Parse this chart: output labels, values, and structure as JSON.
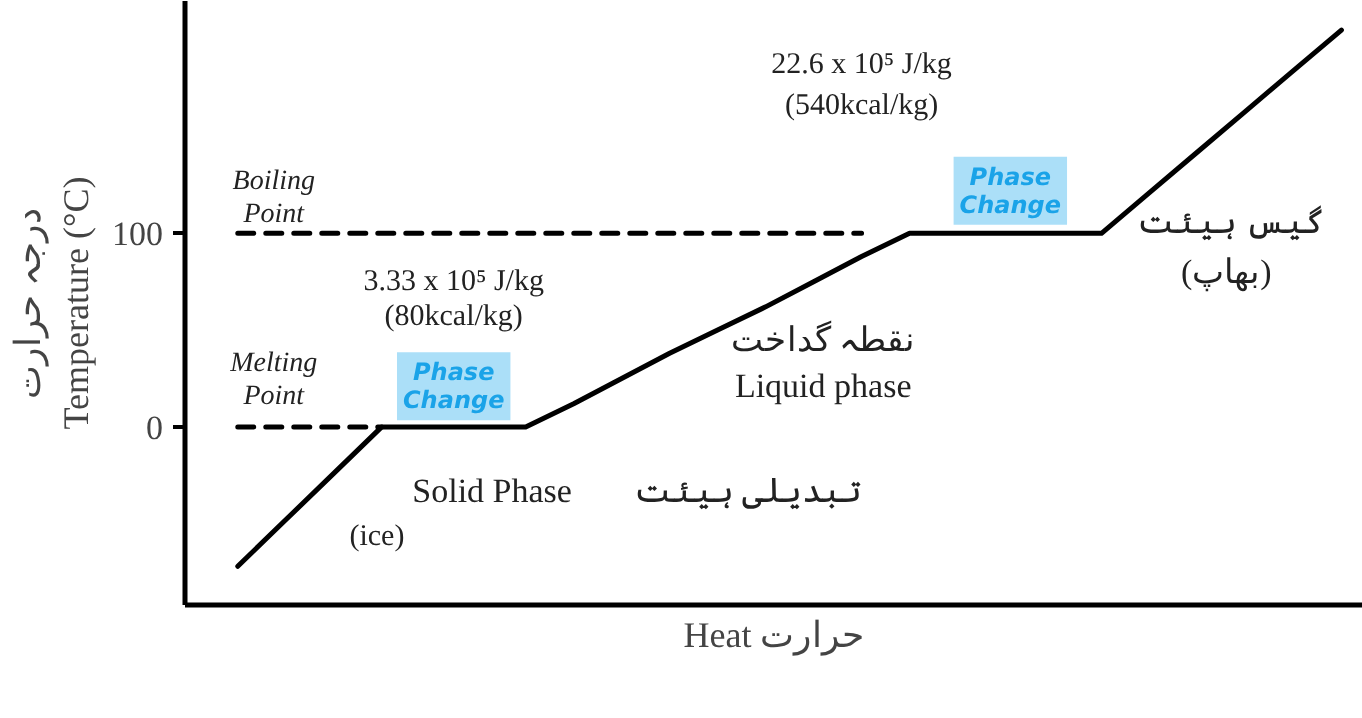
{
  "chart_data": {
    "type": "line",
    "xlabel": "Heat حرارت",
    "ylabel": "درجہ حرارت\nTemperature (°C)",
    "categories": [
      null,
      null,
      null,
      null,
      null,
      null,
      null,
      null,
      null,
      null,
      null,
      null,
      null,
      null,
      null,
      null,
      null,
      null,
      null,
      null,
      null,
      null,
      null,
      null
    ],
    "ylim": [
      -92,
      220
    ],
    "yticks": [
      0,
      100
    ],
    "grid": false,
    "marker": "none",
    "series": [
      {
        "color": "#000000",
        "line_style": "solid",
        "values": [
          -72,
          -48,
          -24,
          0,
          0,
          0,
          0,
          12,
          25,
          38,
          50,
          62,
          75,
          88,
          100,
          100,
          100,
          100,
          100,
          121,
          142,
          163,
          184,
          205
        ]
      },
      {
        "color": "#000000",
        "line_style": "dashed",
        "values": [
          0,
          0,
          0,
          0,
          null,
          null,
          null,
          null,
          null,
          null,
          null,
          null,
          null,
          null,
          null,
          null,
          null,
          null,
          null,
          null,
          null,
          null,
          null,
          null
        ]
      },
      {
        "color": "#000000",
        "line_style": "dashed",
        "values": [
          100,
          100,
          100,
          100,
          100,
          100,
          100,
          100,
          100,
          100,
          100,
          100,
          100,
          100,
          null,
          null,
          null,
          null,
          null,
          null,
          null,
          null,
          null,
          null
        ]
      }
    ],
    "annotations": [
      "Boiling Point",
      "Melting Point",
      "Phase Change",
      "Phase Change",
      "3.33 x 10⁵ J/kg",
      "(80kcal/kg)",
      "22.6 x 10⁵ J/kg",
      "(540kcal/kg)",
      "نقطہ گداخت",
      "Liquid phase",
      "Solid Phase",
      "تبدیلی ہیئت",
      "(ice)",
      "گیس ہیئت",
      "(بھاپ)"
    ]
  }
}
